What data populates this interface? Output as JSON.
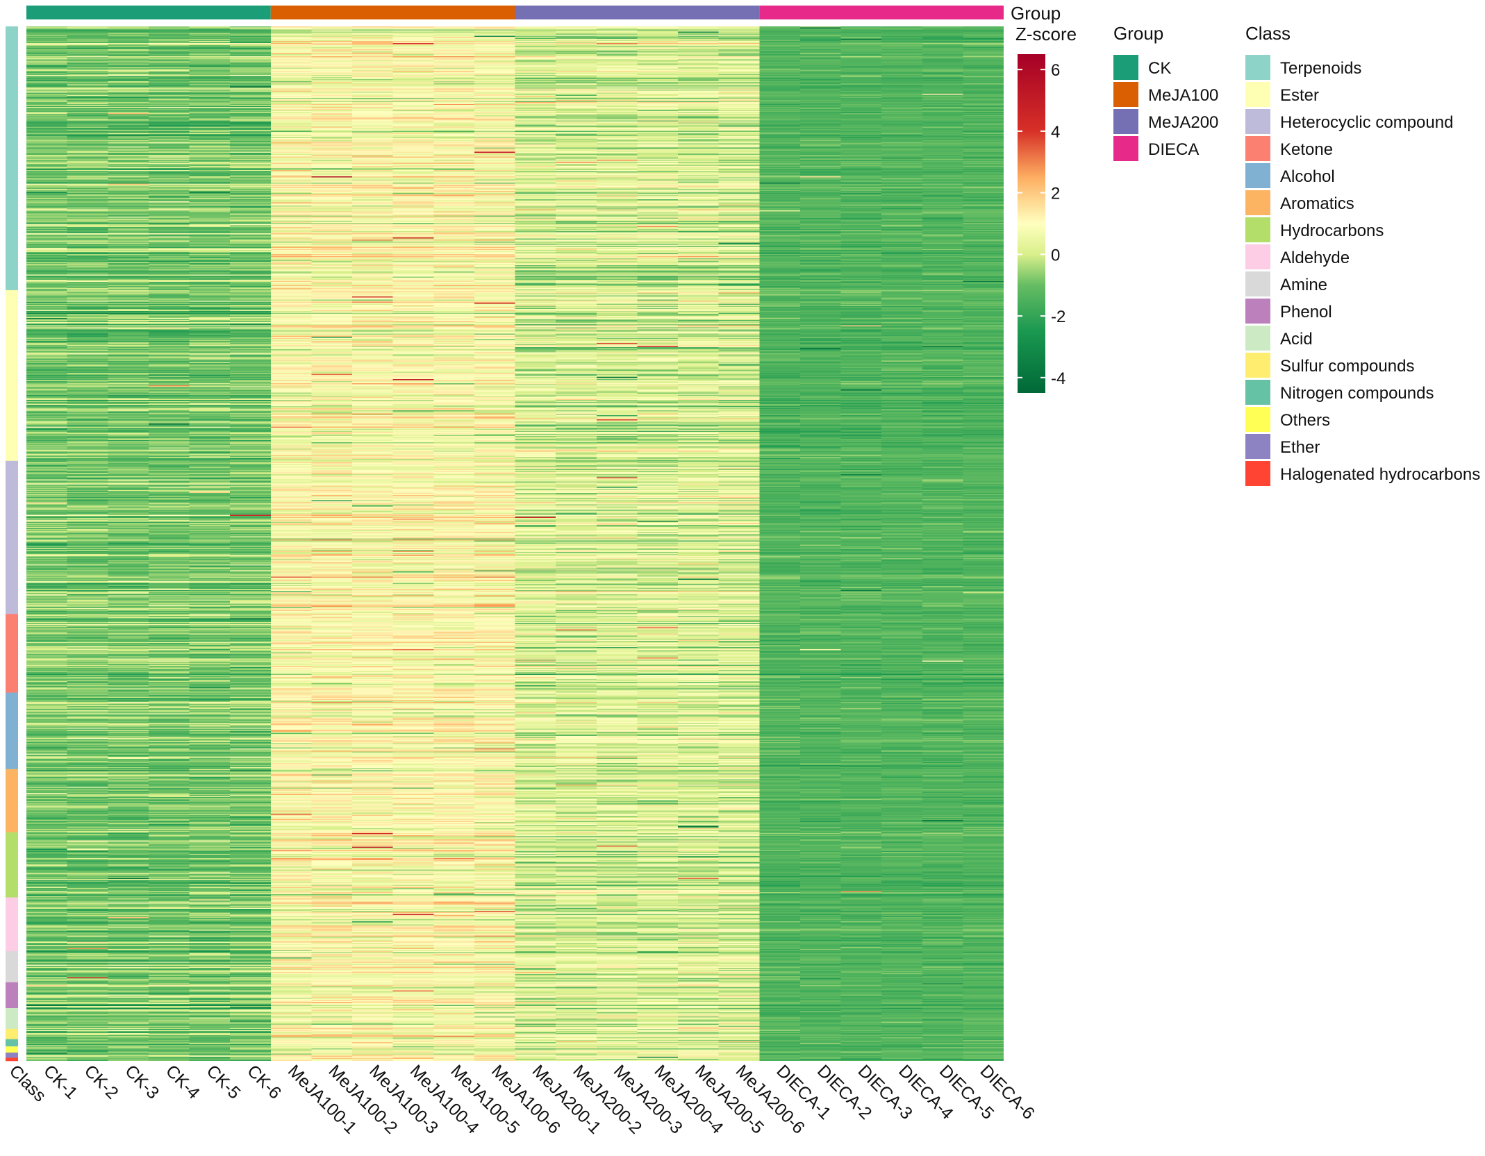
{
  "chart_data": {
    "type": "heatmap",
    "title": "",
    "columns": [
      "CK-1",
      "CK-2",
      "CK-3",
      "CK-4",
      "CK-5",
      "CK-6",
      "MeJA100-1",
      "MeJA100-2",
      "MeJA100-3",
      "MeJA100-4",
      "MeJA100-5",
      "MeJA100-6",
      "MeJA200-1",
      "MeJA200-2",
      "MeJA200-3",
      "MeJA200-4",
      "MeJA200-5",
      "MeJA200-6",
      "DIECA-1",
      "DIECA-2",
      "DIECA-3",
      "DIECA-4",
      "DIECA-5",
      "DIECA-6"
    ],
    "column_groups": [
      "CK",
      "CK",
      "CK",
      "CK",
      "CK",
      "CK",
      "MeJA100",
      "MeJA100",
      "MeJA100",
      "MeJA100",
      "MeJA100",
      "MeJA100",
      "MeJA200",
      "MeJA200",
      "MeJA200",
      "MeJA200",
      "MeJA200",
      "MeJA200",
      "DIECA",
      "DIECA",
      "DIECA",
      "DIECA",
      "DIECA",
      "DIECA"
    ],
    "row_annotation_label": "Class",
    "column_annotation_label": "Group",
    "group_mean_zscore": {
      "CK": -0.9,
      "MeJA100": 0.9,
      "MeJA200": 0.2,
      "DIECA": -1.4
    },
    "row_class_counts": [
      {
        "class": "Terpenoids",
        "rows": 255
      },
      {
        "class": "Ester",
        "rows": 165
      },
      {
        "class": "Heterocyclic compound",
        "rows": 148
      },
      {
        "class": "Ketone",
        "rows": 76
      },
      {
        "class": "Alcohol",
        "rows": 74
      },
      {
        "class": "Aromatics",
        "rows": 61
      },
      {
        "class": "Hydrocarbons",
        "rows": 63
      },
      {
        "class": "Aldehyde",
        "rows": 52
      },
      {
        "class": "Amine",
        "rows": 30
      },
      {
        "class": "Phenol",
        "rows": 25
      },
      {
        "class": "Acid",
        "rows": 20
      },
      {
        "class": "Sulfur compounds",
        "rows": 10
      },
      {
        "class": "Nitrogen compounds",
        "rows": 7
      },
      {
        "class": "Others",
        "rows": 6
      },
      {
        "class": "Ether",
        "rows": 5
      },
      {
        "class": "Halogenated hydrocarbons",
        "rows": 3
      }
    ],
    "colorbar": {
      "title": "Z-score",
      "range": [
        -4.5,
        6.5
      ],
      "ticks": [
        "6",
        "4",
        "2",
        "0",
        "-2",
        "-4"
      ],
      "tick_values": [
        6,
        4,
        2,
        0,
        -2,
        -4
      ],
      "stops": [
        {
          "value": -4.5,
          "color": "#006837"
        },
        {
          "value": -2.5,
          "color": "#1a9850"
        },
        {
          "value": -1.0,
          "color": "#66bd63"
        },
        {
          "value": 0.0,
          "color": "#d9ef8b"
        },
        {
          "value": 1.0,
          "color": "#ffffbf"
        },
        {
          "value": 2.5,
          "color": "#fdae61"
        },
        {
          "value": 4.0,
          "color": "#d73027"
        },
        {
          "value": 6.5,
          "color": "#a50026"
        }
      ]
    }
  },
  "legend": {
    "group_title": "Group",
    "group_items": [
      {
        "label": "CK",
        "color": "#1b9e77"
      },
      {
        "label": "MeJA100",
        "color": "#d95f02"
      },
      {
        "label": "MeJA200",
        "color": "#7570b3"
      },
      {
        "label": "DIECA",
        "color": "#e7298a"
      }
    ],
    "class_title": "Class",
    "class_items": [
      {
        "label": "Terpenoids",
        "color": "#8dd3c7"
      },
      {
        "label": "Ester",
        "color": "#ffffb3"
      },
      {
        "label": "Heterocyclic compound",
        "color": "#bebada"
      },
      {
        "label": "Ketone",
        "color": "#fb8072"
      },
      {
        "label": "Alcohol",
        "color": "#80b1d3"
      },
      {
        "label": "Aromatics",
        "color": "#fdb462"
      },
      {
        "label": "Hydrocarbons",
        "color": "#b3de69"
      },
      {
        "label": "Aldehyde",
        "color": "#fccde5"
      },
      {
        "label": "Amine",
        "color": "#d9d9d9"
      },
      {
        "label": "Phenol",
        "color": "#bc80bd"
      },
      {
        "label": "Acid",
        "color": "#ccebc5"
      },
      {
        "label": "Sulfur compounds",
        "color": "#ffed6f"
      },
      {
        "label": "Nitrogen compounds",
        "color": "#66c2a5"
      },
      {
        "label": "Others",
        "color": "#ffff55"
      },
      {
        "label": "Ether",
        "color": "#8e83c2"
      },
      {
        "label": "Halogenated hydrocarbons",
        "color": "#ff4433"
      }
    ]
  }
}
